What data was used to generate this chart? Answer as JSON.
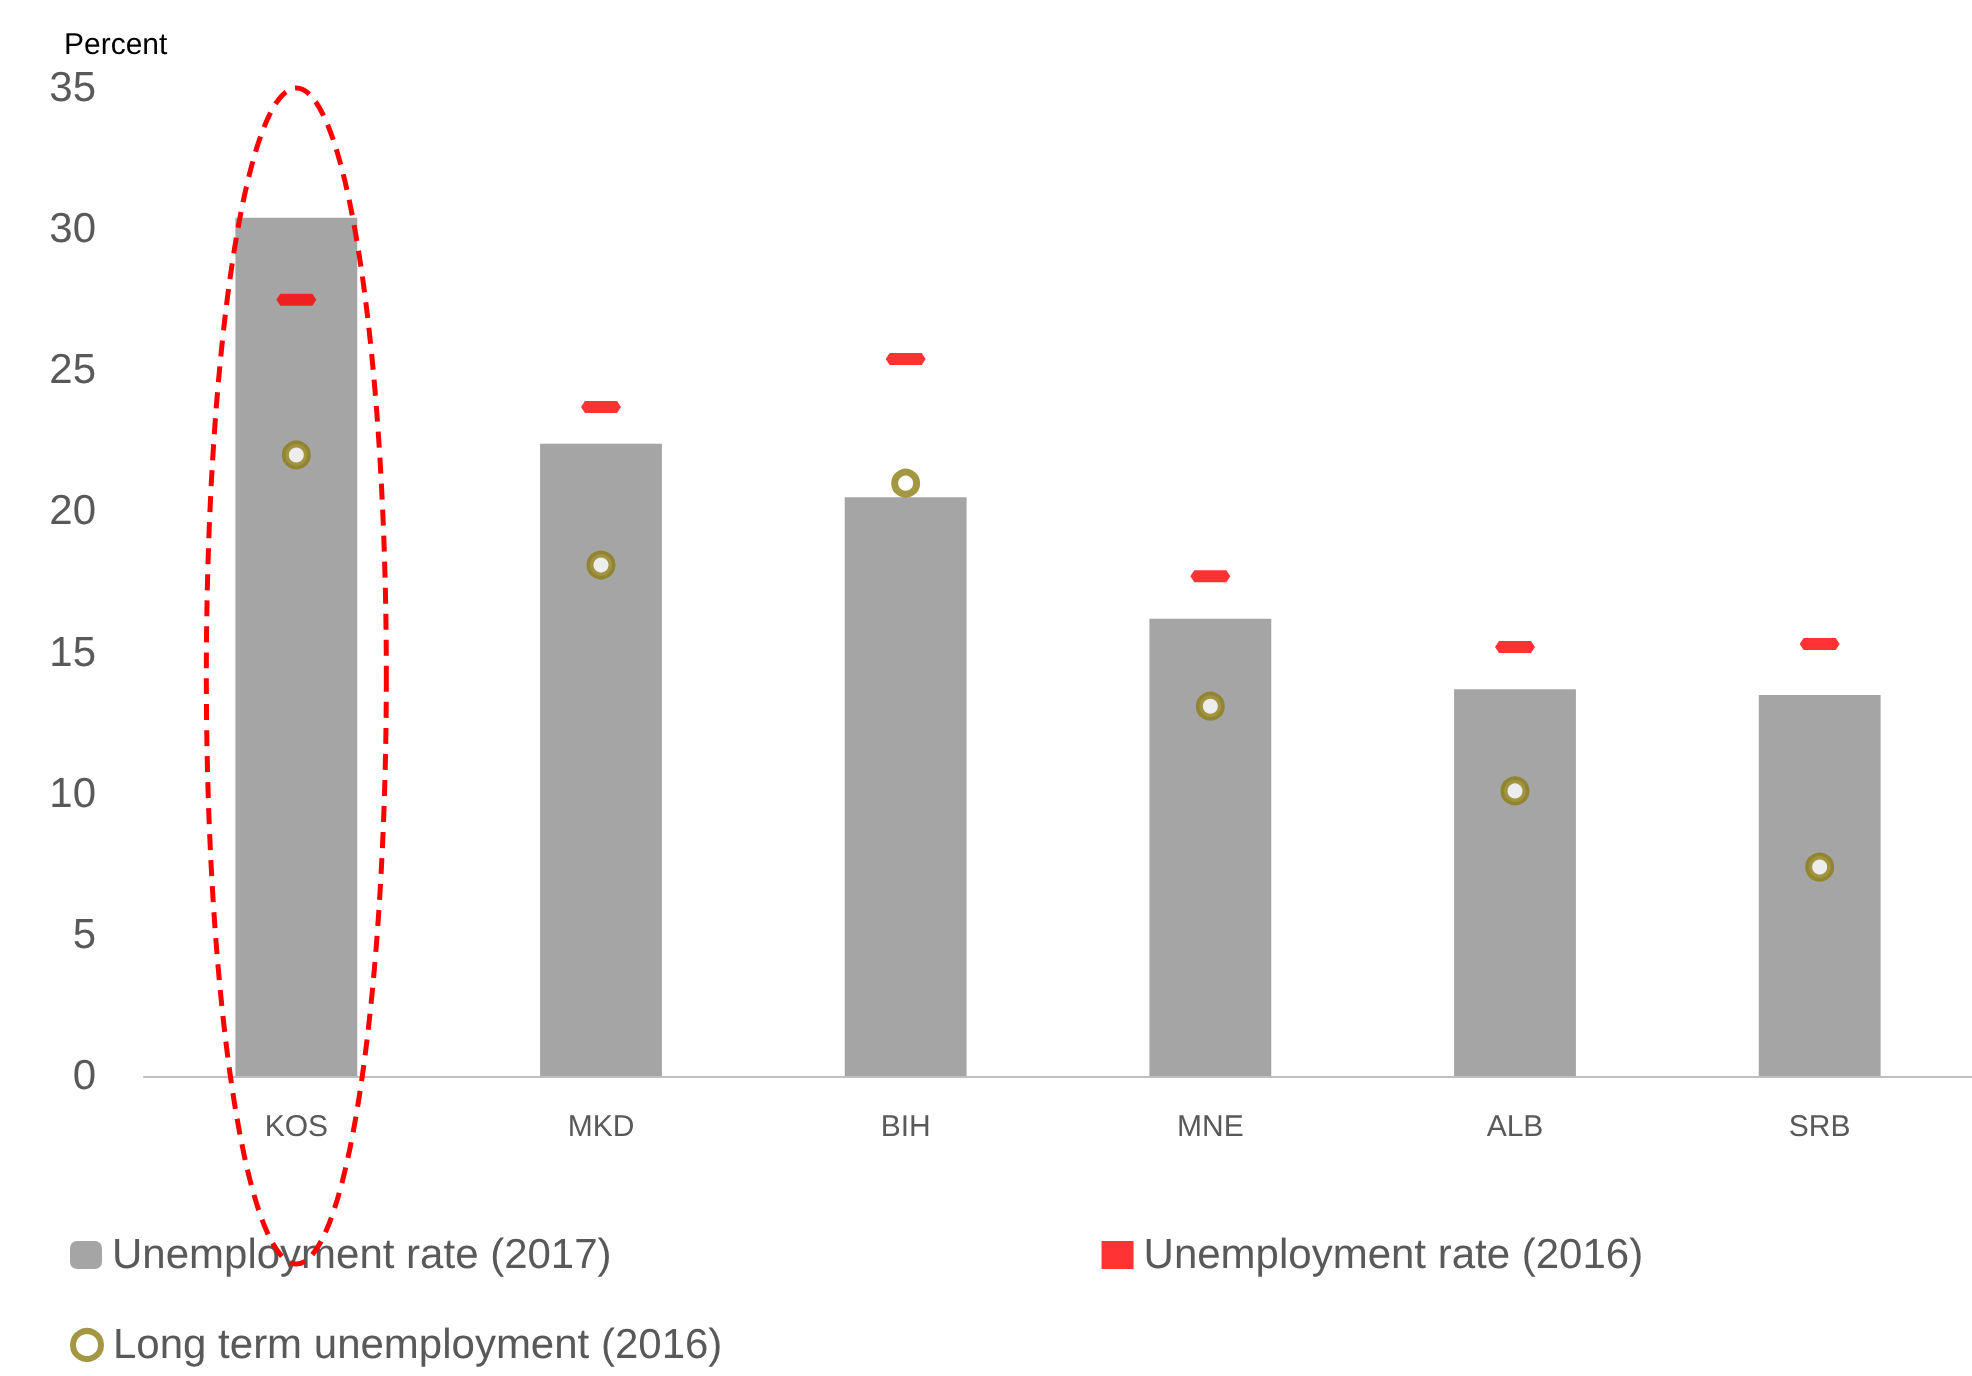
{
  "chart_data": {
    "type": "bar",
    "ylabel": "Percent",
    "categories": [
      "KOS",
      "MKD",
      "BIH",
      "MNE",
      "ALB",
      "SRB"
    ],
    "series": [
      {
        "name": "Unemployment rate (2017)",
        "color": "#a5a5a5",
        "values": [
          30.4,
          22.4,
          20.5,
          16.2,
          13.7,
          13.5
        ]
      },
      {
        "name": "Unemployment rate (2016)",
        "type": "scatter",
        "color": "#ff0000",
        "values": [
          27.5,
          23.7,
          25.4,
          17.7,
          15.2,
          15.3
        ]
      },
      {
        "name": "Long term unemployment (2016)",
        "type": "scatter",
        "marker": "circle",
        "color": "#8c7d14",
        "values": [
          22.0,
          18.1,
          21.0,
          13.1,
          10.1,
          7.4
        ]
      }
    ],
    "ylim": [
      0,
      35
    ],
    "yticks": [
      0,
      5,
      10,
      15,
      20,
      25,
      30,
      35
    ],
    "grid": false,
    "legend": "bottom left"
  }
}
